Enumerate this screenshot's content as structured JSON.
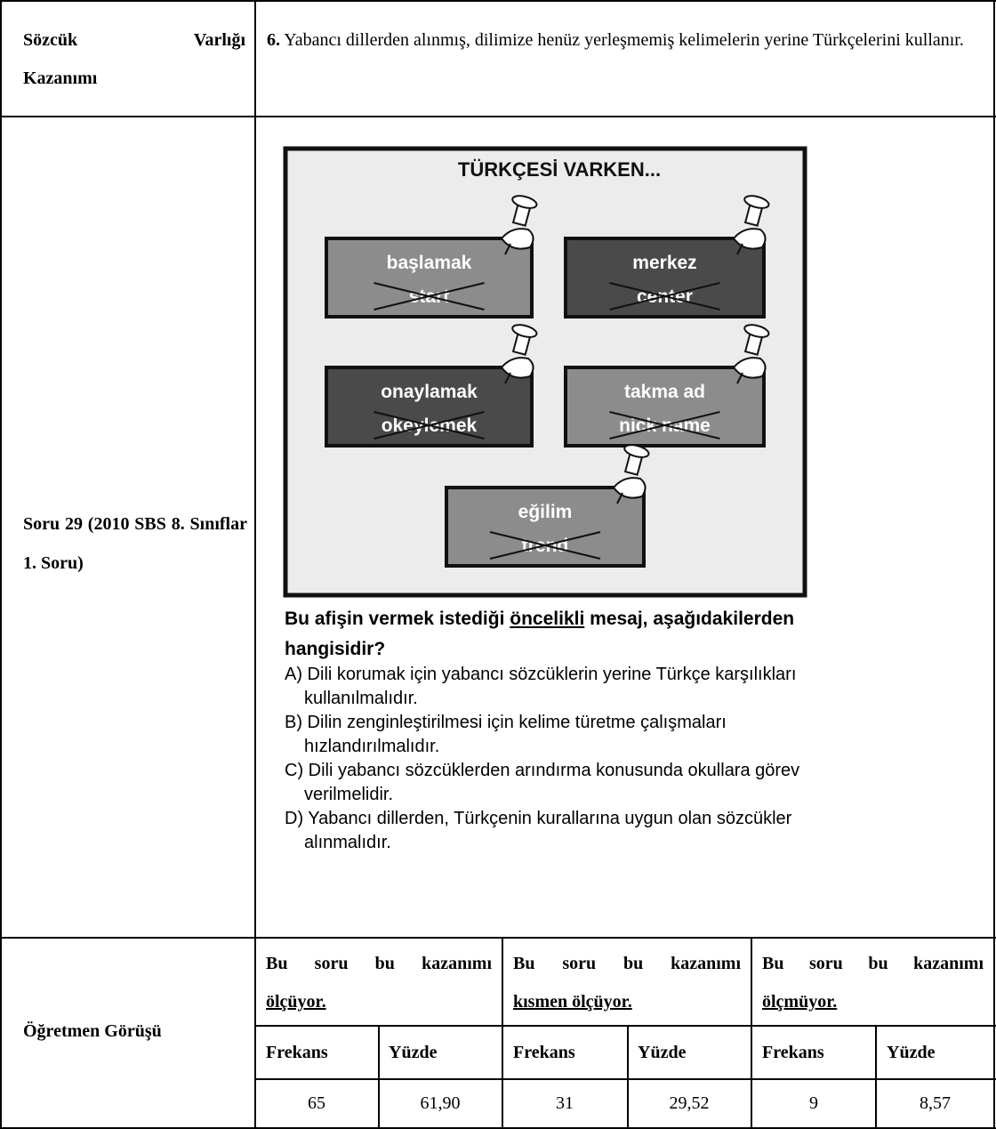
{
  "criterion": {
    "label_lines": [
      "Sözcük Varlığı",
      "Kazanımı"
    ],
    "number": "6.",
    "text": "Yabancı dillerden alınmış, dilimize henüz yerleşmemiş kelimelerin yerine Türkçelerini kullanır."
  },
  "question": {
    "label": "Soru 29 (2010 SBS 8. Sınıflar 1. Soru)",
    "poster": {
      "title": "TÜRKÇESİ VARKEN...",
      "notes": [
        {
          "word": "başlamak",
          "foreign": "start"
        },
        {
          "word": "merkez",
          "foreign": "center"
        },
        {
          "word": "onaylamak",
          "foreign": "okeylemek"
        },
        {
          "word": "takma ad",
          "foreign": "nick name"
        },
        {
          "word": "eğilim",
          "foreign": "trend"
        }
      ]
    },
    "stem": {
      "before": "Bu afişin vermek istediği",
      "underlined": "öncelikli",
      "after": "mesaj, aşağıdakilerden hangisidir?"
    },
    "options": [
      "A) Dili korumak için yabancı sözcüklerin yerine Türkçe karşılıkları kullanılmalıdır.",
      "B) Dilin zenginleştirilmesi için kelime türetme çalışmaları hızlandırılmalıdır.",
      "C) Dili yabancı sözcüklerden arındırma konusunda okullara görev verilmelidir.",
      "D) Yabancı dillerden, Türkçenin kurallarına uygun olan sözcükler alınmalıdır."
    ]
  },
  "opinion": {
    "label": "Öğretmen Görüşü",
    "groups": [
      {
        "lead": "Bu soru bu kazanımı",
        "emphasis": "ölçüyor.",
        "frequency_label": "Frekans",
        "percent_label": "Yüzde",
        "frequency": "65",
        "percent": "61,90"
      },
      {
        "lead": "Bu soru bu kazanımı",
        "emphasis": "kısmen ölçüyor.",
        "frequency_label": "Frekans",
        "percent_label": "Yüzde",
        "frequency": "31",
        "percent": "29,52"
      },
      {
        "lead": "Bu soru bu kazanımı",
        "emphasis": "ölçmüyor.",
        "frequency_label": "Frekans",
        "percent_label": "Yüzde",
        "frequency": "9",
        "percent": "8,57"
      }
    ]
  }
}
